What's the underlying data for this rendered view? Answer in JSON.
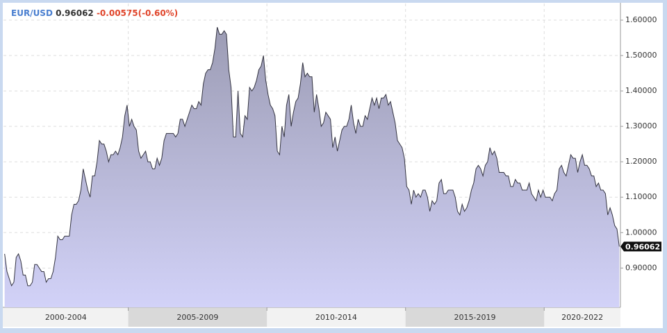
{
  "chart_data": {
    "type": "area",
    "symbol": "EUR/USD",
    "last": "0.96062",
    "change": "-0.00575(-0.60%)",
    "line_color": "#333340",
    "fill_top": "#9c9cb4",
    "fill_bottom": "#d2d2f8",
    "ylim": [
      0.789,
      1.647
    ],
    "yticks": [
      {
        "value": 0.9,
        "label": "0.90000"
      },
      {
        "value": 1.0,
        "label": "1.00000"
      },
      {
        "value": 1.1,
        "label": "1.10000"
      },
      {
        "value": 1.2,
        "label": "1.20000"
      },
      {
        "value": 1.3,
        "label": "1.30000"
      },
      {
        "value": 1.4,
        "label": "1.40000"
      },
      {
        "value": 1.5,
        "label": "1.50000"
      },
      {
        "value": 1.6,
        "label": "1.60000"
      }
    ],
    "grid": true,
    "periods": [
      {
        "label": "2000-2004",
        "shaded": false,
        "values": [
          0.94,
          0.89,
          0.87,
          0.85,
          0.86,
          0.93,
          0.94,
          0.92,
          0.88,
          0.88,
          0.85,
          0.85,
          0.86,
          0.91,
          0.91,
          0.9,
          0.89,
          0.89,
          0.86,
          0.87,
          0.87,
          0.89,
          0.93,
          0.99,
          0.98,
          0.98,
          0.99,
          0.99,
          0.99,
          1.05,
          1.08,
          1.08,
          1.09,
          1.12,
          1.18,
          1.15,
          1.12,
          1.1,
          1.16,
          1.16,
          1.2,
          1.26,
          1.25,
          1.25,
          1.23,
          1.2,
          1.22,
          1.22,
          1.23,
          1.22,
          1.24,
          1.27,
          1.33,
          1.36
        ]
      },
      {
        "label": "2005-2009",
        "shaded": true,
        "values": [
          1.3,
          1.32,
          1.3,
          1.29,
          1.23,
          1.21,
          1.22,
          1.23,
          1.2,
          1.2,
          1.18,
          1.18,
          1.21,
          1.19,
          1.21,
          1.26,
          1.28,
          1.28,
          1.28,
          1.28,
          1.27,
          1.28,
          1.32,
          1.32,
          1.3,
          1.32,
          1.34,
          1.36,
          1.35,
          1.35,
          1.37,
          1.36,
          1.42,
          1.45,
          1.46,
          1.46,
          1.48,
          1.52,
          1.58,
          1.56,
          1.56,
          1.57,
          1.56,
          1.46,
          1.41,
          1.27,
          1.27,
          1.4,
          1.28,
          1.27,
          1.33,
          1.32,
          1.41,
          1.4,
          1.41,
          1.43,
          1.46,
          1.47,
          1.5,
          1.43
        ]
      },
      {
        "label": "2010-2014",
        "shaded": false,
        "values": [
          1.39,
          1.36,
          1.35,
          1.33,
          1.23,
          1.22,
          1.3,
          1.27,
          1.36,
          1.39,
          1.3,
          1.34,
          1.37,
          1.38,
          1.42,
          1.48,
          1.44,
          1.45,
          1.44,
          1.44,
          1.34,
          1.39,
          1.35,
          1.3,
          1.31,
          1.34,
          1.33,
          1.32,
          1.24,
          1.27,
          1.23,
          1.26,
          1.29,
          1.3,
          1.3,
          1.32,
          1.36,
          1.31,
          1.28,
          1.32,
          1.3,
          1.3,
          1.33,
          1.32,
          1.35,
          1.38,
          1.36,
          1.38,
          1.35,
          1.38,
          1.38,
          1.39,
          1.36,
          1.37,
          1.34,
          1.31,
          1.26,
          1.25,
          1.24,
          1.21
        ]
      },
      {
        "label": "2015-2019",
        "shaded": true,
        "values": [
          1.13,
          1.12,
          1.08,
          1.12,
          1.1,
          1.11,
          1.1,
          1.12,
          1.12,
          1.1,
          1.06,
          1.09,
          1.08,
          1.09,
          1.14,
          1.15,
          1.11,
          1.11,
          1.12,
          1.12,
          1.12,
          1.1,
          1.06,
          1.05,
          1.08,
          1.06,
          1.07,
          1.09,
          1.12,
          1.14,
          1.18,
          1.19,
          1.18,
          1.16,
          1.19,
          1.2,
          1.24,
          1.22,
          1.23,
          1.21,
          1.17,
          1.17,
          1.17,
          1.16,
          1.16,
          1.13,
          1.13,
          1.15,
          1.14,
          1.14,
          1.12,
          1.12,
          1.12,
          1.14,
          1.11,
          1.1,
          1.09,
          1.12,
          1.1,
          1.12
        ]
      },
      {
        "label": "2020-2022",
        "shaded": false,
        "values": [
          1.1,
          1.1,
          1.1,
          1.09,
          1.11,
          1.12,
          1.18,
          1.19,
          1.17,
          1.16,
          1.19,
          1.22,
          1.21,
          1.21,
          1.17,
          1.2,
          1.22,
          1.19,
          1.19,
          1.18,
          1.16,
          1.16,
          1.13,
          1.14,
          1.12,
          1.12,
          1.11,
          1.05,
          1.07,
          1.05,
          1.02,
          1.01,
          0.96062
        ]
      }
    ]
  }
}
